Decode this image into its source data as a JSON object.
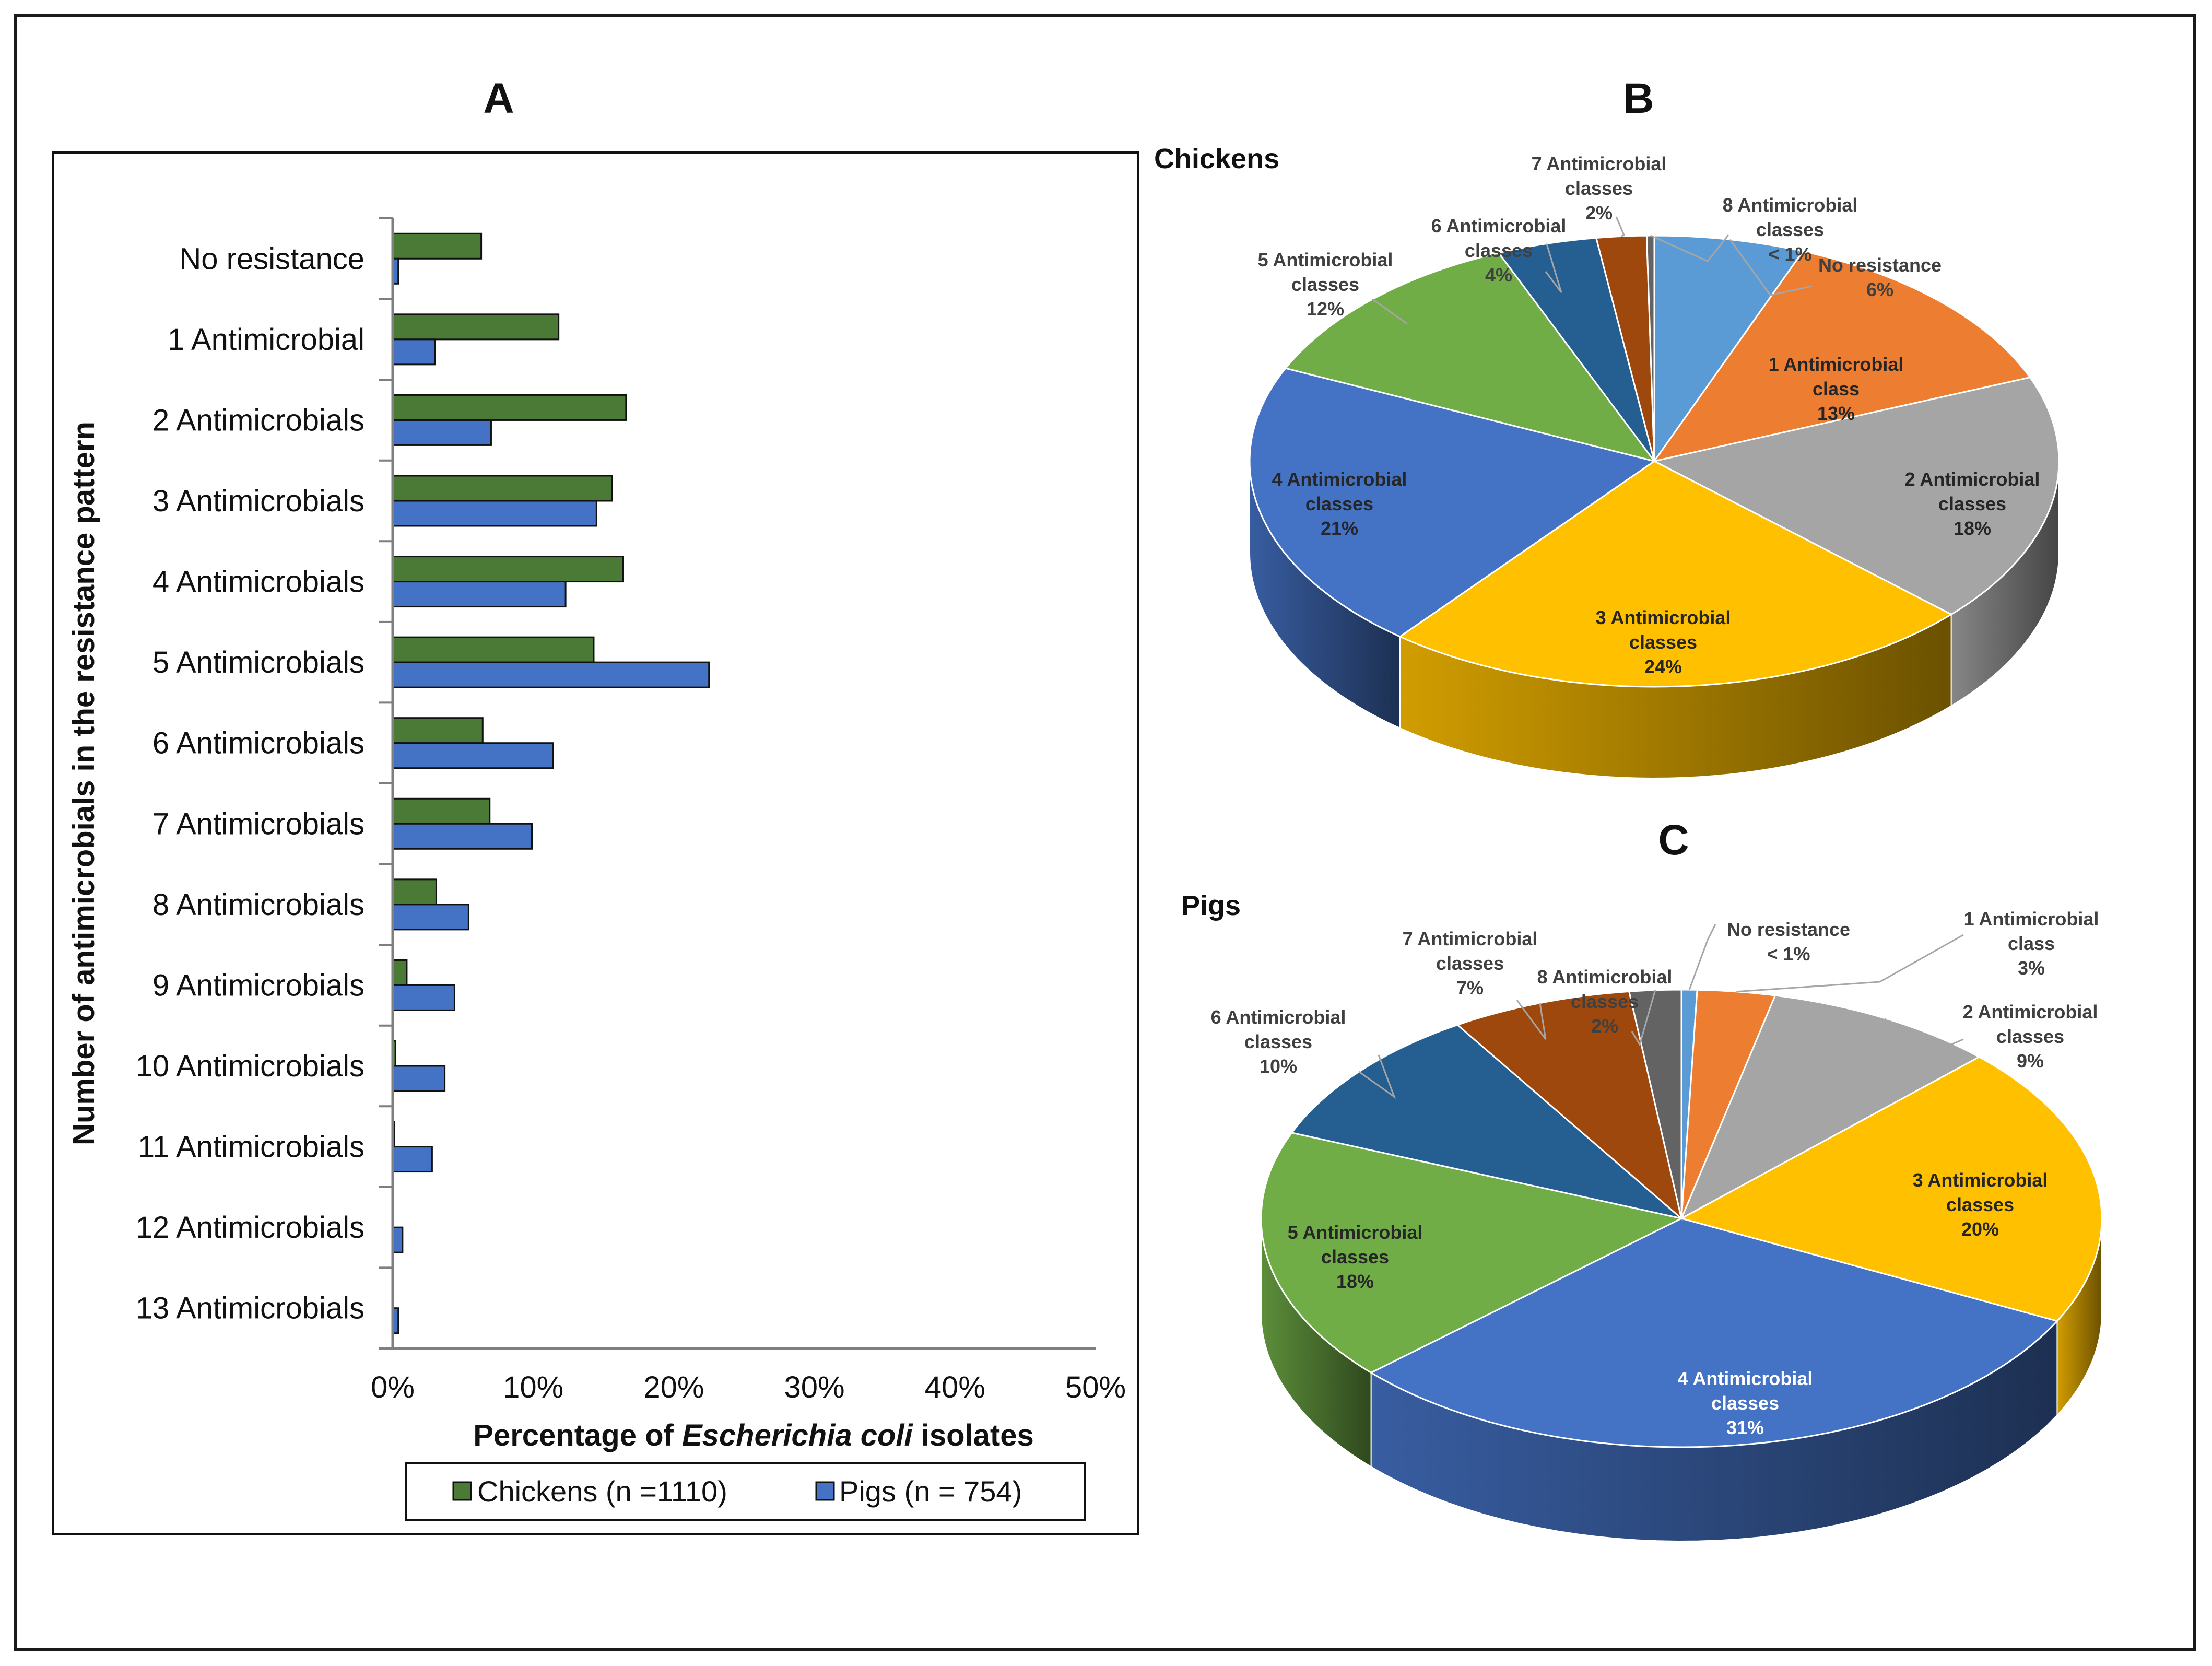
{
  "panels": {
    "a": "A",
    "b": "B",
    "c": "C"
  },
  "chart_data": [
    {
      "type": "bar",
      "orientation": "horizontal",
      "categories": [
        "No resistance",
        "1 Antimicrobial",
        "2 Antimicrobials",
        "3 Antimicrobials",
        "4 Antimicrobials",
        "5 Antimicrobials",
        "6 Antimicrobials",
        "7 Antimicrobials",
        "8 Antimicrobials",
        "9 Antimicrobials",
        "10 Antimicrobials",
        "11 Antimicrobials",
        "12 Antimicrobials",
        "13 Antimicrobials"
      ],
      "series": [
        {
          "name": "Chickens (n =1110)",
          "color": "#4a7a36",
          "values": [
            6.3,
            11.8,
            16.6,
            15.6,
            16.4,
            14.3,
            6.4,
            6.9,
            3.1,
            1.0,
            0.2,
            0.1,
            0.0,
            0.0
          ]
        },
        {
          "name": "Pigs (n = 754)",
          "color": "#4472c4",
          "values": [
            0.4,
            3.0,
            7.0,
            14.5,
            12.3,
            22.5,
            11.4,
            9.9,
            5.4,
            4.4,
            3.7,
            2.8,
            0.7,
            0.4
          ]
        }
      ],
      "xlim": [
        0,
        50
      ],
      "xticks": [
        "0%",
        "10%",
        "20%",
        "30%",
        "40%",
        "50%"
      ],
      "xlabel_parts": [
        "Percentage of ",
        "Escherichia coli",
        " isolates"
      ],
      "ylabel": "Number of antimicrobials in the resistance pattern",
      "legend": "bottom"
    },
    {
      "type": "pie",
      "title": "Chickens",
      "slices": [
        {
          "label": [
            "No resistance",
            "6%"
          ],
          "value": 6,
          "color": "#5b9bd5"
        },
        {
          "label": [
            "1 Antimicrobial",
            "class",
            "13%"
          ],
          "value": 13,
          "color": "#ed7d31"
        },
        {
          "label": [
            "2 Antimicrobial",
            "classes",
            "18%"
          ],
          "value": 18,
          "color": "#a5a5a5"
        },
        {
          "label": [
            "3 Antimicrobial",
            "classes",
            "24%"
          ],
          "value": 24,
          "color": "#ffc000"
        },
        {
          "label": [
            "4 Antimicrobial",
            "classes",
            "21%"
          ],
          "value": 21,
          "color": "#4472c4"
        },
        {
          "label": [
            "5 Antimicrobial",
            "classes",
            "12%"
          ],
          "value": 12,
          "color": "#70ad47"
        },
        {
          "label": [
            "6 Antimicrobial",
            "classes",
            "4%"
          ],
          "value": 4,
          "color": "#255e91"
        },
        {
          "label": [
            "7 Antimicrobial",
            "classes",
            "2%"
          ],
          "value": 2,
          "color": "#9e480e"
        },
        {
          "label": [
            "8 Antimicrobial",
            "classes",
            "< 1%"
          ],
          "value": 0.3,
          "color": "#636363"
        }
      ]
    },
    {
      "type": "pie",
      "title": "Pigs",
      "slices": [
        {
          "label": [
            "No resistance",
            "< 1%"
          ],
          "value": 0.6,
          "color": "#5b9bd5"
        },
        {
          "label": [
            "1 Antimicrobial",
            "class",
            "3%"
          ],
          "value": 3,
          "color": "#ed7d31"
        },
        {
          "label": [
            "2 Antimicrobial",
            "classes",
            "9%"
          ],
          "value": 9,
          "color": "#a5a5a5"
        },
        {
          "label": [
            "3 Antimicrobial",
            "classes",
            "20%"
          ],
          "value": 20,
          "color": "#ffc000"
        },
        {
          "label": [
            "4 Antimicrobial",
            "classes",
            "31%"
          ],
          "value": 31,
          "color": "#4472c4"
        },
        {
          "label": [
            "5 Antimicrobial",
            "classes",
            "18%"
          ],
          "value": 18,
          "color": "#70ad47"
        },
        {
          "label": [
            "6 Antimicrobial",
            "classes",
            "10%"
          ],
          "value": 10,
          "color": "#255e91"
        },
        {
          "label": [
            "7 Antimicrobial",
            "classes",
            "7%"
          ],
          "value": 7,
          "color": "#9e480e"
        },
        {
          "label": [
            "8 Antimicrobial",
            "classes",
            "2%"
          ],
          "value": 2,
          "color": "#636363"
        }
      ]
    }
  ]
}
